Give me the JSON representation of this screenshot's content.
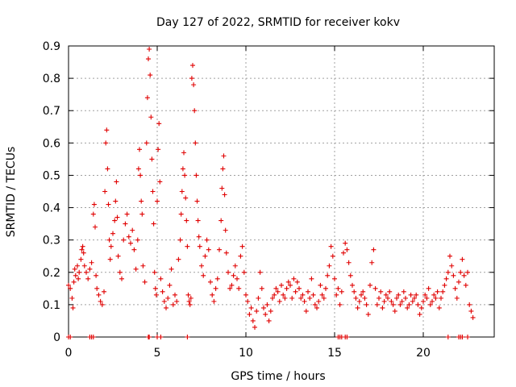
{
  "chart_data": {
    "type": "scatter",
    "title": "Day 127 of 2022, SRMTID for receiver kokv",
    "xlabel": "GPS time / hours",
    "ylabel": "SRMTID / TECUs",
    "xlim": [
      0,
      24
    ],
    "ylim": [
      0,
      0.9
    ],
    "xticks": [
      0,
      5,
      10,
      15,
      20
    ],
    "yticks": [
      0,
      0.1,
      0.2,
      0.3,
      0.4,
      0.5,
      0.6,
      0.7,
      0.8,
      0.9
    ],
    "xtick_labels": [
      "0",
      "5",
      "10",
      "15",
      "20"
    ],
    "ytick_labels": [
      "0",
      "0.1",
      "0.2",
      "0.3",
      "0.4",
      "0.5",
      "0.6",
      "0.7",
      "0.8",
      "0.9"
    ],
    "grid": true,
    "marker": "+",
    "color": "#e00000",
    "series": [
      {
        "name": "SRMTID",
        "points": [
          [
            0.0,
            0.16
          ],
          [
            0.1,
            0.15
          ],
          [
            0.2,
            0.12
          ],
          [
            0.25,
            0.09
          ],
          [
            0.3,
            0.17
          ],
          [
            0.35,
            0.21
          ],
          [
            0.4,
            0.19
          ],
          [
            0.5,
            0.22
          ],
          [
            0.55,
            0.18
          ],
          [
            0.6,
            0.2
          ],
          [
            0.7,
            0.24
          ],
          [
            0.75,
            0.27
          ],
          [
            0.8,
            0.28
          ],
          [
            0.85,
            0.26
          ],
          [
            0.9,
            0.22
          ],
          [
            1.0,
            0.2
          ],
          [
            1.1,
            0.18
          ],
          [
            1.2,
            0.21
          ],
          [
            1.3,
            0.23
          ],
          [
            1.4,
            0.38
          ],
          [
            1.45,
            0.41
          ],
          [
            1.5,
            0.34
          ],
          [
            1.55,
            0.19
          ],
          [
            1.6,
            0.15
          ],
          [
            1.7,
            0.13
          ],
          [
            1.8,
            0.11
          ],
          [
            1.9,
            0.1
          ],
          [
            2.0,
            0.14
          ],
          [
            2.05,
            0.45
          ],
          [
            2.1,
            0.6
          ],
          [
            2.15,
            0.64
          ],
          [
            2.2,
            0.52
          ],
          [
            2.25,
            0.41
          ],
          [
            2.3,
            0.3
          ],
          [
            2.35,
            0.24
          ],
          [
            2.4,
            0.28
          ],
          [
            2.5,
            0.32
          ],
          [
            2.6,
            0.36
          ],
          [
            2.65,
            0.42
          ],
          [
            2.7,
            0.48
          ],
          [
            2.75,
            0.37
          ],
          [
            2.8,
            0.25
          ],
          [
            2.9,
            0.2
          ],
          [
            3.0,
            0.18
          ],
          [
            3.1,
            0.3
          ],
          [
            3.2,
            0.35
          ],
          [
            3.3,
            0.38
          ],
          [
            3.4,
            0.31
          ],
          [
            3.5,
            0.29
          ],
          [
            3.6,
            0.33
          ],
          [
            3.7,
            0.27
          ],
          [
            3.8,
            0.21
          ],
          [
            3.9,
            0.3
          ],
          [
            3.95,
            0.52
          ],
          [
            4.0,
            0.58
          ],
          [
            4.05,
            0.5
          ],
          [
            4.1,
            0.42
          ],
          [
            4.15,
            0.38
          ],
          [
            4.2,
            0.22
          ],
          [
            4.3,
            0.17
          ],
          [
            4.4,
            0.6
          ],
          [
            4.45,
            0.74
          ],
          [
            4.5,
            0.86
          ],
          [
            4.55,
            0.89
          ],
          [
            4.6,
            0.81
          ],
          [
            4.65,
            0.68
          ],
          [
            4.7,
            0.55
          ],
          [
            4.75,
            0.45
          ],
          [
            4.8,
            0.35
          ],
          [
            4.85,
            0.2
          ],
          [
            4.9,
            0.15
          ],
          [
            4.95,
            0.13
          ],
          [
            5.0,
            0.42
          ],
          [
            5.05,
            0.58
          ],
          [
            5.1,
            0.66
          ],
          [
            5.15,
            0.48
          ],
          [
            5.2,
            0.18
          ],
          [
            5.3,
            0.14
          ],
          [
            5.4,
            0.11
          ],
          [
            5.5,
            0.09
          ],
          [
            5.6,
            0.12
          ],
          [
            5.7,
            0.16
          ],
          [
            5.8,
            0.21
          ],
          [
            5.9,
            0.1
          ],
          [
            6.0,
            0.13
          ],
          [
            6.1,
            0.11
          ],
          [
            6.2,
            0.24
          ],
          [
            6.3,
            0.3
          ],
          [
            6.35,
            0.38
          ],
          [
            6.4,
            0.45
          ],
          [
            6.45,
            0.52
          ],
          [
            6.5,
            0.57
          ],
          [
            6.55,
            0.5
          ],
          [
            6.6,
            0.43
          ],
          [
            6.65,
            0.36
          ],
          [
            6.7,
            0.28
          ],
          [
            6.75,
            0.13
          ],
          [
            6.8,
            0.11
          ],
          [
            6.85,
            0.1
          ],
          [
            6.9,
            0.12
          ],
          [
            6.95,
            0.8
          ],
          [
            7.0,
            0.84
          ],
          [
            7.05,
            0.78
          ],
          [
            7.1,
            0.7
          ],
          [
            7.15,
            0.6
          ],
          [
            7.2,
            0.5
          ],
          [
            7.25,
            0.42
          ],
          [
            7.3,
            0.36
          ],
          [
            7.35,
            0.31
          ],
          [
            7.4,
            0.28
          ],
          [
            7.5,
            0.22
          ],
          [
            7.6,
            0.19
          ],
          [
            7.7,
            0.25
          ],
          [
            7.8,
            0.3
          ],
          [
            7.9,
            0.27
          ],
          [
            8.0,
            0.17
          ],
          [
            8.1,
            0.13
          ],
          [
            8.2,
            0.11
          ],
          [
            8.3,
            0.15
          ],
          [
            8.4,
            0.18
          ],
          [
            8.5,
            0.27
          ],
          [
            8.6,
            0.36
          ],
          [
            8.65,
            0.46
          ],
          [
            8.7,
            0.52
          ],
          [
            8.75,
            0.56
          ],
          [
            8.8,
            0.44
          ],
          [
            8.85,
            0.33
          ],
          [
            8.9,
            0.26
          ],
          [
            9.0,
            0.2
          ],
          [
            9.1,
            0.15
          ],
          [
            9.2,
            0.16
          ],
          [
            9.3,
            0.19
          ],
          [
            9.4,
            0.22
          ],
          [
            9.5,
            0.18
          ],
          [
            9.6,
            0.15
          ],
          [
            9.7,
            0.25
          ],
          [
            9.8,
            0.28
          ],
          [
            9.9,
            0.2
          ],
          [
            10.0,
            0.13
          ],
          [
            10.1,
            0.11
          ],
          [
            10.2,
            0.07
          ],
          [
            10.3,
            0.09
          ],
          [
            10.4,
            0.05
          ],
          [
            10.5,
            0.03
          ],
          [
            10.6,
            0.08
          ],
          [
            10.7,
            0.12
          ],
          [
            10.8,
            0.2
          ],
          [
            10.9,
            0.15
          ],
          [
            11.0,
            0.09
          ],
          [
            11.1,
            0.07
          ],
          [
            11.2,
            0.1
          ],
          [
            11.3,
            0.05
          ],
          [
            11.4,
            0.08
          ],
          [
            11.5,
            0.12
          ],
          [
            11.6,
            0.13
          ],
          [
            11.7,
            0.15
          ],
          [
            11.8,
            0.14
          ],
          [
            11.9,
            0.11
          ],
          [
            12.0,
            0.16
          ],
          [
            12.1,
            0.13
          ],
          [
            12.2,
            0.12
          ],
          [
            12.3,
            0.15
          ],
          [
            12.4,
            0.17
          ],
          [
            12.5,
            0.16
          ],
          [
            12.6,
            0.12
          ],
          [
            12.7,
            0.18
          ],
          [
            12.8,
            0.14
          ],
          [
            12.9,
            0.17
          ],
          [
            13.0,
            0.15
          ],
          [
            13.1,
            0.12
          ],
          [
            13.2,
            0.13
          ],
          [
            13.3,
            0.11
          ],
          [
            13.4,
            0.08
          ],
          [
            13.5,
            0.14
          ],
          [
            13.6,
            0.12
          ],
          [
            13.7,
            0.18
          ],
          [
            13.8,
            0.13
          ],
          [
            13.9,
            0.1
          ],
          [
            14.0,
            0.09
          ],
          [
            14.1,
            0.11
          ],
          [
            14.2,
            0.16
          ],
          [
            14.3,
            0.13
          ],
          [
            14.4,
            0.12
          ],
          [
            14.5,
            0.15
          ],
          [
            14.6,
            0.19
          ],
          [
            14.7,
            0.22
          ],
          [
            14.8,
            0.28
          ],
          [
            14.9,
            0.25
          ],
          [
            15.0,
            0.18
          ],
          [
            15.1,
            0.13
          ],
          [
            15.2,
            0.15
          ],
          [
            15.3,
            0.1
          ],
          [
            15.4,
            0.14
          ],
          [
            15.5,
            0.26
          ],
          [
            15.6,
            0.29
          ],
          [
            15.7,
            0.27
          ],
          [
            15.8,
            0.23
          ],
          [
            15.9,
            0.19
          ],
          [
            16.0,
            0.16
          ],
          [
            16.1,
            0.14
          ],
          [
            16.2,
            0.12
          ],
          [
            16.3,
            0.09
          ],
          [
            16.4,
            0.11
          ],
          [
            16.5,
            0.13
          ],
          [
            16.6,
            0.14
          ],
          [
            16.7,
            0.12
          ],
          [
            16.8,
            0.1
          ],
          [
            16.9,
            0.07
          ],
          [
            17.0,
            0.16
          ],
          [
            17.1,
            0.23
          ],
          [
            17.2,
            0.27
          ],
          [
            17.3,
            0.15
          ],
          [
            17.4,
            0.1
          ],
          [
            17.5,
            0.12
          ],
          [
            17.6,
            0.14
          ],
          [
            17.7,
            0.09
          ],
          [
            17.8,
            0.11
          ],
          [
            17.9,
            0.13
          ],
          [
            18.0,
            0.12
          ],
          [
            18.1,
            0.14
          ],
          [
            18.2,
            0.11
          ],
          [
            18.3,
            0.1
          ],
          [
            18.4,
            0.08
          ],
          [
            18.5,
            0.12
          ],
          [
            18.6,
            0.13
          ],
          [
            18.7,
            0.1
          ],
          [
            18.8,
            0.11
          ],
          [
            18.9,
            0.14
          ],
          [
            19.0,
            0.12
          ],
          [
            19.1,
            0.09
          ],
          [
            19.2,
            0.1
          ],
          [
            19.3,
            0.13
          ],
          [
            19.4,
            0.11
          ],
          [
            19.5,
            0.12
          ],
          [
            19.6,
            0.13
          ],
          [
            19.7,
            0.1
          ],
          [
            19.8,
            0.07
          ],
          [
            19.9,
            0.09
          ],
          [
            20.0,
            0.11
          ],
          [
            20.1,
            0.13
          ],
          [
            20.2,
            0.12
          ],
          [
            20.3,
            0.15
          ],
          [
            20.4,
            0.1
          ],
          [
            20.5,
            0.11
          ],
          [
            20.6,
            0.13
          ],
          [
            20.7,
            0.12
          ],
          [
            20.8,
            0.14
          ],
          [
            20.9,
            0.09
          ],
          [
            21.0,
            0.12
          ],
          [
            21.1,
            0.14
          ],
          [
            21.2,
            0.16
          ],
          [
            21.3,
            0.18
          ],
          [
            21.4,
            0.2
          ],
          [
            21.5,
            0.25
          ],
          [
            21.6,
            0.22
          ],
          [
            21.7,
            0.19
          ],
          [
            21.8,
            0.15
          ],
          [
            21.9,
            0.12
          ],
          [
            22.0,
            0.17
          ],
          [
            22.1,
            0.2
          ],
          [
            22.2,
            0.24
          ],
          [
            22.3,
            0.19
          ],
          [
            22.4,
            0.16
          ],
          [
            22.5,
            0.2
          ],
          [
            22.6,
            0.1
          ],
          [
            22.7,
            0.08
          ],
          [
            22.8,
            0.06
          ]
        ],
        "zero_points": [
          0.0,
          0.1,
          1.2,
          1.3,
          1.4,
          4.5,
          4.55,
          5.0,
          5.2,
          6.7,
          15.2,
          15.3,
          15.4,
          15.6,
          15.7,
          21.4,
          22.0,
          22.1,
          22.2,
          22.5
        ]
      }
    ]
  }
}
